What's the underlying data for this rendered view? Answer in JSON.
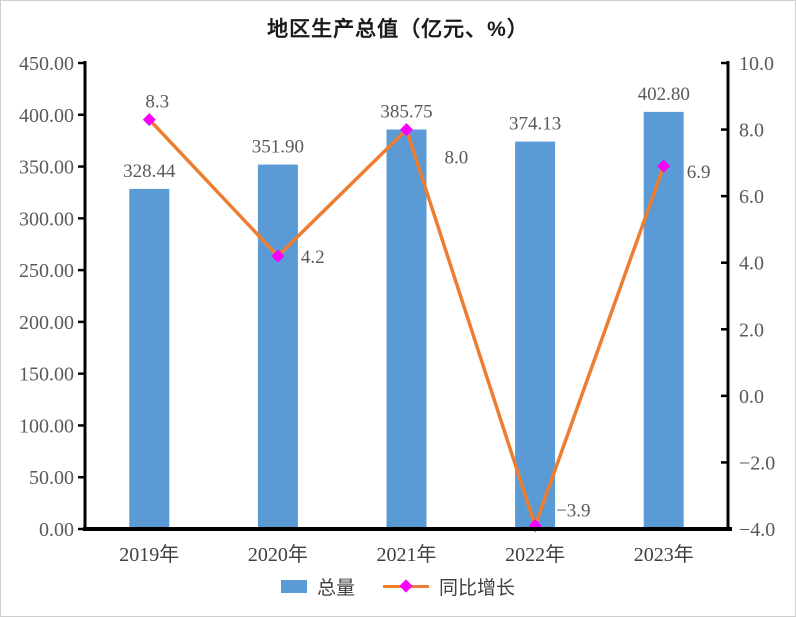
{
  "chart_data": {
    "type": "bar",
    "subtype": "bar+line combo, dual axis",
    "title": "地区生产总值（亿元、%）",
    "categories": [
      "2019年",
      "2020年",
      "2021年",
      "2022年",
      "2023年"
    ],
    "series": [
      {
        "name": "总量",
        "type": "bar",
        "axis": "left",
        "values": [
          328.44,
          351.9,
          385.75,
          374.13,
          402.8
        ],
        "label_decimals": 2,
        "color": "#5B9BD5"
      },
      {
        "name": "同比增长",
        "type": "line",
        "axis": "right",
        "values": [
          8.3,
          4.2,
          8.0,
          -3.9,
          6.9
        ],
        "label_decimals": 1,
        "color": "#ED7D31",
        "marker": "diamond",
        "marker_color": "#FB00FB"
      }
    ],
    "left_axis": {
      "min": 0,
      "max": 450,
      "step": 50,
      "tick_decimals": 2
    },
    "right_axis": {
      "min": -4,
      "max": 10,
      "step": 2,
      "tick_decimals": 1
    },
    "grid": false,
    "legend_position": "bottom",
    "axis_color": "#000000",
    "tick_label_color": "#595959",
    "data_label_color": "#595959",
    "category_label_color": "#404040"
  }
}
